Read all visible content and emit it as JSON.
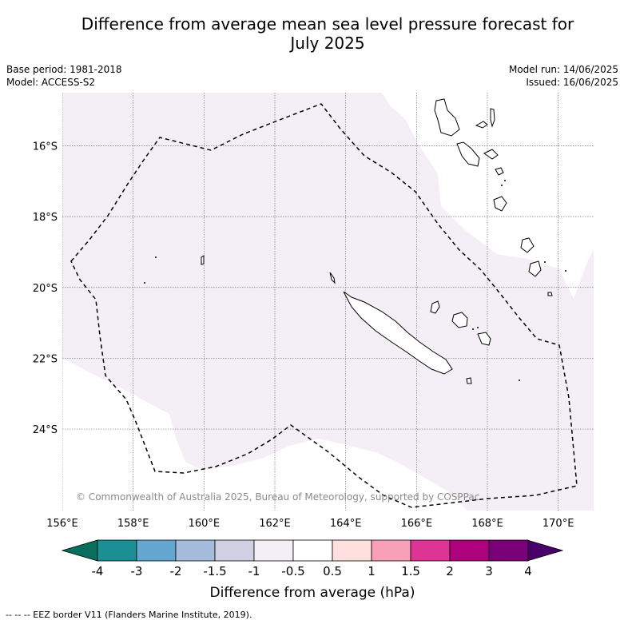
{
  "title_line1": "Difference from average mean sea level pressure forecast for",
  "title_line2": "July 2025",
  "meta": {
    "base_period": "Base period: 1981-2018",
    "model": "Model: ACCESS-S2",
    "model_run": "Model run: 14/06/2025",
    "issued": "Issued: 16/06/2025"
  },
  "map": {
    "lon_range": [
      156,
      171
    ],
    "lat_range": [
      -26.3,
      -14.5
    ],
    "lon_ticks": [
      "156°E",
      "158°E",
      "160°E",
      "162°E",
      "164°E",
      "166°E",
      "168°E",
      "170°E"
    ],
    "lat_ticks": [
      "16°S",
      "18°S",
      "20°S",
      "22°S",
      "24°S"
    ],
    "grid": true,
    "shaded_category": "-1 to -0.5",
    "shade_color": "#f4eef6",
    "copyright": "© Commonwealth of Australia 2025, Bureau of Meteorology, supported by COSPPac"
  },
  "colorbar": {
    "labels": [
      "-4",
      "-3",
      "-2",
      "-1.5",
      "-1",
      "-0.5",
      "0.5",
      "1",
      "1.5",
      "2",
      "3",
      "4"
    ],
    "colors": [
      "#1a9096",
      "#64a8d2",
      "#a6bcdc",
      "#d0d0e4",
      "#f4eef6",
      "#ffffff",
      "#ffe0de",
      "#f8a0b8",
      "#de3496",
      "#ae017e",
      "#7a0177"
    ],
    "low_extend_color": "#0a6e5e",
    "high_extend_color": "#49006a",
    "title": "Difference from average (hPa)"
  },
  "footer": "--  --  -- EEZ border V11 (Flanders Marine Institute, 2019)."
}
